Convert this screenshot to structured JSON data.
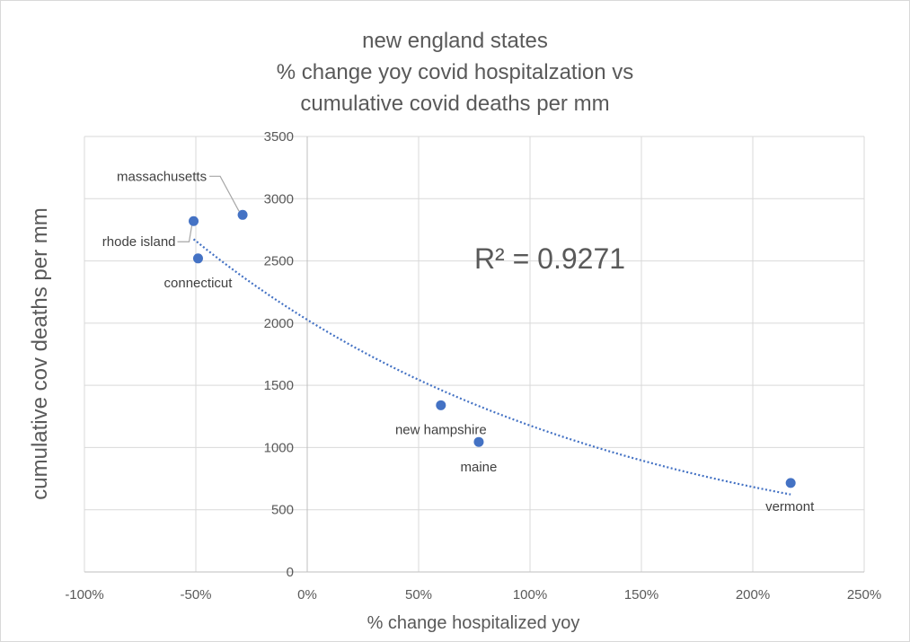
{
  "chart_data": {
    "type": "scatter",
    "title_lines": [
      "new england states",
      "% change yoy covid hospitalzation vs",
      "cumulative covid deaths per mm"
    ],
    "xlabel": "% change hospitalized yoy",
    "ylabel": "cumulative cov deaths per mm",
    "xlim": [
      -1.0,
      2.5
    ],
    "ylim": [
      0,
      3500
    ],
    "x_ticks": [
      -1.0,
      -0.5,
      0,
      0.5,
      1.0,
      1.5,
      2.0,
      2.5
    ],
    "x_tick_labels": [
      "-100%",
      "-50%",
      "0%",
      "50%",
      "100%",
      "150%",
      "200%",
      "250%"
    ],
    "y_ticks": [
      0,
      500,
      1000,
      1500,
      2000,
      2500,
      3000,
      3500
    ],
    "y_tick_labels": [
      "0",
      "500",
      "1000",
      "1500",
      "2000",
      "2500",
      "3000",
      "3500"
    ],
    "grid": true,
    "marker_color": "#4472c4",
    "points": [
      {
        "label": "massachusetts",
        "x": -0.29,
        "y": 2870
      },
      {
        "label": "rhode island",
        "x": -0.51,
        "y": 2820
      },
      {
        "label": "connecticut",
        "x": -0.49,
        "y": 2520
      },
      {
        "label": "new hampshire",
        "x": 0.6,
        "y": 1340
      },
      {
        "label": "maine",
        "x": 0.77,
        "y": 1045
      },
      {
        "label": "vermont",
        "x": 2.17,
        "y": 715
      }
    ],
    "trendline": {
      "type": "exponential",
      "color": "#4472c4",
      "style": "dotted",
      "x_range": [
        -0.51,
        2.17
      ],
      "r_squared_label": "R² = 0.9271"
    }
  }
}
